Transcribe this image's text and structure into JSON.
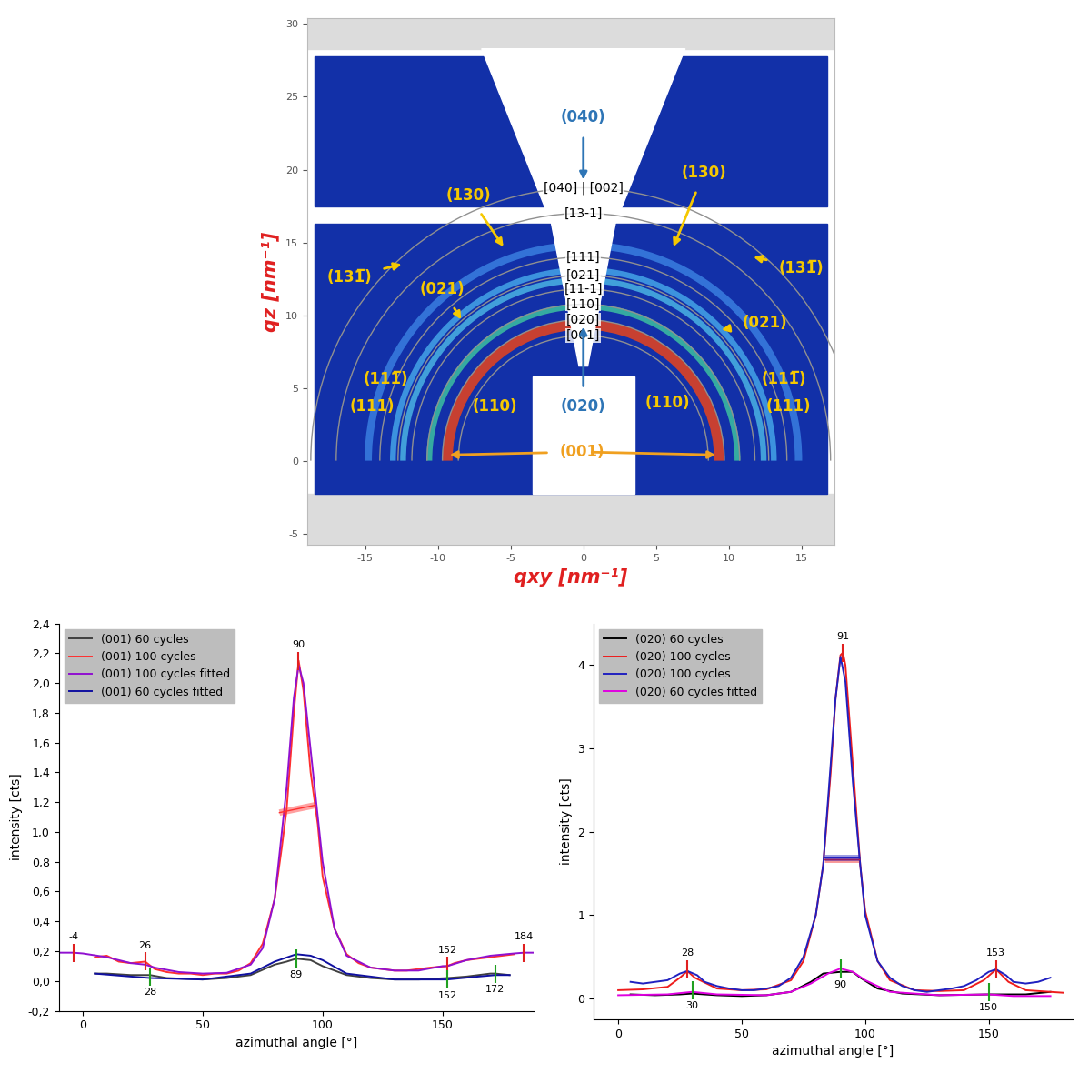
{
  "chart_data": [
    {
      "type": "image",
      "xlabel": "qxy [nm⁻¹]",
      "ylabel": "qz [nm⁻¹]",
      "xlim": [
        -19,
        17.25
      ],
      "ylim": [
        -5.8,
        30.4
      ],
      "xticks": [
        -15,
        -10,
        -5,
        0,
        5,
        10,
        15
      ],
      "yticks": [
        -5,
        0,
        5,
        10,
        15,
        20,
        25,
        30
      ],
      "color": "#1230a8",
      "rings": [
        {
          "q": 9.35,
          "width": 0.7,
          "color": "#e8441c"
        },
        {
          "q": 10.6,
          "width": 0.4,
          "color": "#3cc0a0"
        },
        {
          "q": 12.4,
          "width": 0.4,
          "color": "#4ab4e4"
        },
        {
          "q": 13.1,
          "width": 0.4,
          "color": "#44a4e8"
        },
        {
          "q": 14.8,
          "width": 0.5,
          "color": "#3a7ee0"
        }
      ],
      "reference_rings": [
        {
          "label": "[040] | [002]",
          "q": 18.75
        },
        {
          "label": "[13-1]",
          "q": 17.0
        },
        {
          "label": "[111]",
          "q": 14.0
        },
        {
          "label": "[021]",
          "q": 12.75
        },
        {
          "label": "[11-1]",
          "q": 11.8
        },
        {
          "label": "[110]",
          "q": 10.75
        },
        {
          "label": "[020]",
          "q": 9.7
        },
        {
          "label": "[001]",
          "q": 8.6
        }
      ],
      "annotations": [
        {
          "text": "(040)",
          "color": "#2e75b6",
          "xytext": [
            0,
            23.6
          ],
          "targets": [
            [
              0,
              19.3
            ]
          ]
        },
        {
          "text": "(020)",
          "color": "#2e75b6",
          "xytext": [
            0,
            3.7
          ],
          "targets": [
            [
              0,
              9.2
            ]
          ]
        },
        {
          "text": "(001)",
          "color": "#f0a020",
          "xytext": [
            -0.1,
            0.6
          ],
          "targets": [
            [
              -9.2,
              0.4
            ],
            [
              9.1,
              0.4
            ]
          ]
        },
        {
          "text": "(130)",
          "color": "#f5c800",
          "xytext": [
            -7.9,
            18.25
          ],
          "targets": [
            [
              -5.5,
              14.7
            ]
          ]
        },
        {
          "text": "(130)",
          "color": "#f5c800",
          "xytext": [
            8.3,
            19.8
          ],
          "targets": [
            [
              6.2,
              14.7
            ]
          ]
        },
        {
          "text": "(131̅)",
          "color": "#f5c800",
          "xytext": [
            -16.1,
            12.6
          ],
          "targets": [
            [
              -12.5,
              13.5
            ]
          ]
        },
        {
          "text": "(131̅)",
          "color": "#f5c800",
          "xytext": [
            15.0,
            13.25
          ],
          "targets": [
            [
              11.7,
              14.0
            ]
          ]
        },
        {
          "text": "(021)",
          "color": "#f5c800",
          "xytext": [
            -9.7,
            11.8
          ],
          "targets": [
            [
              -8.4,
              9.7
            ]
          ]
        },
        {
          "text": "(021)",
          "color": "#f5c800",
          "xytext": [
            12.5,
            9.5
          ],
          "targets": [
            [
              9.5,
              9.0
            ]
          ]
        },
        {
          "text": "(111̅)",
          "color": "#f5c800",
          "xytext": [
            -13.6,
            5.6
          ],
          "targets": []
        },
        {
          "text": "(111)",
          "color": "#f5c800",
          "xytext": [
            -14.5,
            3.7
          ],
          "targets": []
        },
        {
          "text": "(110)",
          "color": "#f5c800",
          "xytext": [
            -6.1,
            3.7
          ],
          "targets": []
        },
        {
          "text": "(110)",
          "color": "#f5c800",
          "xytext": [
            5.8,
            4.0
          ],
          "targets": []
        },
        {
          "text": "(111̅)",
          "color": "#f5c800",
          "xytext": [
            13.8,
            5.6
          ],
          "targets": []
        },
        {
          "text": "(111)",
          "color": "#f5c800",
          "xytext": [
            14.1,
            3.7
          ],
          "targets": []
        }
      ]
    },
    {
      "type": "line",
      "xlabel": "azimuthal angle [°]",
      "ylabel": "intensity [cts]",
      "xlim": [
        -10,
        188
      ],
      "ylim": [
        -0.2,
        2.4
      ],
      "xticks": [
        0,
        50,
        100,
        150
      ],
      "yticks": [
        {
          "value": -0.2,
          "label": "-0,2"
        },
        {
          "value": 0.0,
          "label": "0,0"
        },
        {
          "value": 0.2,
          "label": "0,2"
        },
        {
          "value": 0.4,
          "label": "0,4"
        },
        {
          "value": 0.6,
          "label": "0,6"
        },
        {
          "value": 0.8,
          "label": "0,8"
        },
        {
          "value": 1.0,
          "label": "1,0"
        },
        {
          "value": 1.2,
          "label": "1,2"
        },
        {
          "value": 1.4,
          "label": "1,4"
        },
        {
          "value": 1.6,
          "label": "1,6"
        },
        {
          "value": 1.8,
          "label": "1,8"
        },
        {
          "value": 2.0,
          "label": "2,0"
        },
        {
          "value": 2.2,
          "label": "2,2"
        },
        {
          "value": 2.4,
          "label": "2,4"
        }
      ],
      "legend": "upper left",
      "series": [
        {
          "name": "(001) 60 cycles",
          "color": "#404040",
          "x": [
            5,
            10,
            20,
            28,
            35,
            50,
            60,
            70,
            80,
            85,
            89,
            95,
            100,
            110,
            120,
            130,
            140,
            152,
            160,
            170,
            172,
            178
          ],
          "values": [
            0.05,
            0.05,
            0.04,
            0.04,
            0.02,
            0.01,
            0.02,
            0.04,
            0.11,
            0.13,
            0.15,
            0.14,
            0.1,
            0.04,
            0.02,
            0.01,
            0.01,
            0.02,
            0.03,
            0.05,
            0.05,
            0.04
          ]
        },
        {
          "name": "(001) 100 cycles",
          "color": "#ff3030",
          "x": [
            5,
            10,
            15,
            20,
            26,
            30,
            35,
            40,
            45,
            50,
            55,
            60,
            65,
            70,
            75,
            80,
            83,
            85,
            88,
            90,
            92,
            95,
            98,
            100,
            105,
            110,
            115,
            120,
            125,
            130,
            135,
            140,
            145,
            152,
            155,
            160,
            165,
            170,
            175,
            180
          ],
          "values": [
            0.16,
            0.17,
            0.13,
            0.12,
            0.13,
            0.08,
            0.06,
            0.05,
            0.05,
            0.04,
            0.05,
            0.05,
            0.07,
            0.12,
            0.25,
            0.55,
            0.9,
            1.15,
            1.8,
            2.15,
            1.95,
            1.4,
            1.05,
            0.7,
            0.35,
            0.18,
            0.12,
            0.09,
            0.08,
            0.07,
            0.07,
            0.08,
            0.09,
            0.1,
            0.12,
            0.14,
            0.15,
            0.16,
            0.17,
            0.18
          ]
        },
        {
          "name": "(001) 100 cycles fitted",
          "color": "#9010d0",
          "x": [
            -10,
            -4,
            0,
            10,
            20,
            26,
            30,
            40,
            50,
            60,
            70,
            75,
            80,
            85,
            88,
            90,
            92,
            95,
            100,
            105,
            110,
            120,
            130,
            140,
            150,
            152,
            160,
            170,
            180,
            184,
            188
          ],
          "values": [
            0.19,
            0.19,
            0.185,
            0.16,
            0.12,
            0.11,
            0.09,
            0.06,
            0.05,
            0.055,
            0.11,
            0.22,
            0.55,
            1.3,
            1.9,
            2.12,
            2.0,
            1.55,
            0.8,
            0.35,
            0.17,
            0.09,
            0.07,
            0.07,
            0.1,
            0.1,
            0.14,
            0.17,
            0.185,
            0.19,
            0.19
          ]
        },
        {
          "name": "(001) 60 cycles fitted",
          "color": "#1010a0",
          "x": [
            5,
            20,
            28,
            50,
            70,
            80,
            89,
            95,
            100,
            110,
            130,
            152,
            165,
            172,
            178
          ],
          "values": [
            0.05,
            0.03,
            0.02,
            0.01,
            0.05,
            0.13,
            0.18,
            0.17,
            0.14,
            0.05,
            0.01,
            0.01,
            0.03,
            0.04,
            0.04
          ]
        }
      ],
      "fwhm": [
        {
          "color": "#ff3030",
          "x": [
            82,
            97
          ],
          "y": [
            1.13,
            1.18
          ]
        }
      ],
      "peaks": [
        {
          "color": "#e02020",
          "x": [
            -4,
            26,
            90,
            152,
            184
          ],
          "y": [
            0.19,
            0.13,
            2.15,
            0.1,
            0.19
          ]
        },
        {
          "color": "#20a020",
          "x": [
            28,
            89,
            152,
            172
          ],
          "y": [
            0.03,
            0.15,
            0.01,
            0.05
          ]
        }
      ]
    },
    {
      "type": "line",
      "xlabel": "azimuthal angle [°]",
      "ylabel": "intensity [cts]",
      "xlim": [
        -10,
        184
      ],
      "ylim": [
        -0.25,
        4.5
      ],
      "xticks": [
        0,
        50,
        100,
        150
      ],
      "yticks": [
        0,
        1,
        2,
        3,
        4
      ],
      "legend": "upper left",
      "series": [
        {
          "name": "(020) 60 cycles",
          "color": "#000000",
          "x": [
            5,
            15,
            25,
            30,
            40,
            50,
            60,
            70,
            78,
            83,
            90,
            95,
            98,
            105,
            115,
            130,
            150,
            165,
            175
          ],
          "values": [
            0.05,
            0.04,
            0.05,
            0.06,
            0.04,
            0.03,
            0.04,
            0.08,
            0.2,
            0.3,
            0.32,
            0.32,
            0.25,
            0.12,
            0.06,
            0.04,
            0.05,
            0.05,
            0.08
          ]
        },
        {
          "name": "(020) 100 cycles",
          "color": "#ee1c1c",
          "x": [
            0,
            10,
            20,
            25,
            28,
            31,
            40,
            50,
            60,
            70,
            75,
            80,
            83,
            86,
            88,
            90,
            91,
            92,
            95,
            98,
            100,
            105,
            110,
            120,
            130,
            140,
            148,
            153,
            158,
            165,
            175,
            180
          ],
          "values": [
            0.1,
            0.11,
            0.14,
            0.25,
            0.33,
            0.25,
            0.12,
            0.1,
            0.11,
            0.22,
            0.45,
            1.0,
            1.6,
            2.7,
            3.6,
            4.12,
            4.15,
            4.0,
            2.8,
            1.6,
            1.05,
            0.45,
            0.22,
            0.1,
            0.09,
            0.1,
            0.22,
            0.35,
            0.2,
            0.1,
            0.08,
            0.07
          ]
        },
        {
          "name": "(020) 100 cycles",
          "color": "#2020c0",
          "x": [
            5,
            10,
            15,
            20,
            25,
            28,
            32,
            35,
            40,
            45,
            50,
            55,
            60,
            65,
            70,
            75,
            80,
            83,
            86,
            88,
            90,
            92,
            95,
            98,
            100,
            105,
            110,
            115,
            120,
            125,
            130,
            135,
            140,
            145,
            150,
            153,
            157,
            160,
            165,
            170,
            175
          ],
          "values": [
            0.2,
            0.18,
            0.2,
            0.22,
            0.3,
            0.33,
            0.28,
            0.2,
            0.15,
            0.12,
            0.1,
            0.1,
            0.12,
            0.15,
            0.25,
            0.5,
            1.0,
            1.6,
            2.8,
            3.6,
            4.1,
            3.8,
            2.6,
            1.6,
            1.0,
            0.45,
            0.25,
            0.15,
            0.1,
            0.08,
            0.1,
            0.12,
            0.15,
            0.22,
            0.32,
            0.35,
            0.28,
            0.2,
            0.18,
            0.2,
            0.25
          ]
        },
        {
          "name": "(020) 60 cycles fitted",
          "color": "#e000e0",
          "x": [
            0,
            20,
            30,
            40,
            60,
            70,
            78,
            85,
            90,
            95,
            100,
            110,
            130,
            150,
            160,
            175
          ],
          "values": [
            0.04,
            0.05,
            0.08,
            0.05,
            0.04,
            0.08,
            0.18,
            0.3,
            0.36,
            0.32,
            0.22,
            0.08,
            0.04,
            0.05,
            0.03,
            0.03
          ]
        }
      ],
      "fwhm": [
        {
          "color": "#ee1c1c",
          "x": [
            83.5,
            97.5
          ],
          "y": [
            1.67,
            1.67
          ]
        },
        {
          "color": "#2020c0",
          "x": [
            83.5,
            97.5
          ],
          "y": [
            1.69,
            1.69
          ]
        }
      ],
      "peaks": [
        {
          "color": "#e02020",
          "x": [
            28,
            91,
            153
          ],
          "y": [
            0.35,
            4.15,
            0.35
          ]
        },
        {
          "color": "#20a020",
          "x": [
            30,
            90,
            150
          ],
          "y": [
            0.1,
            0.36,
            0.08
          ]
        }
      ]
    }
  ]
}
